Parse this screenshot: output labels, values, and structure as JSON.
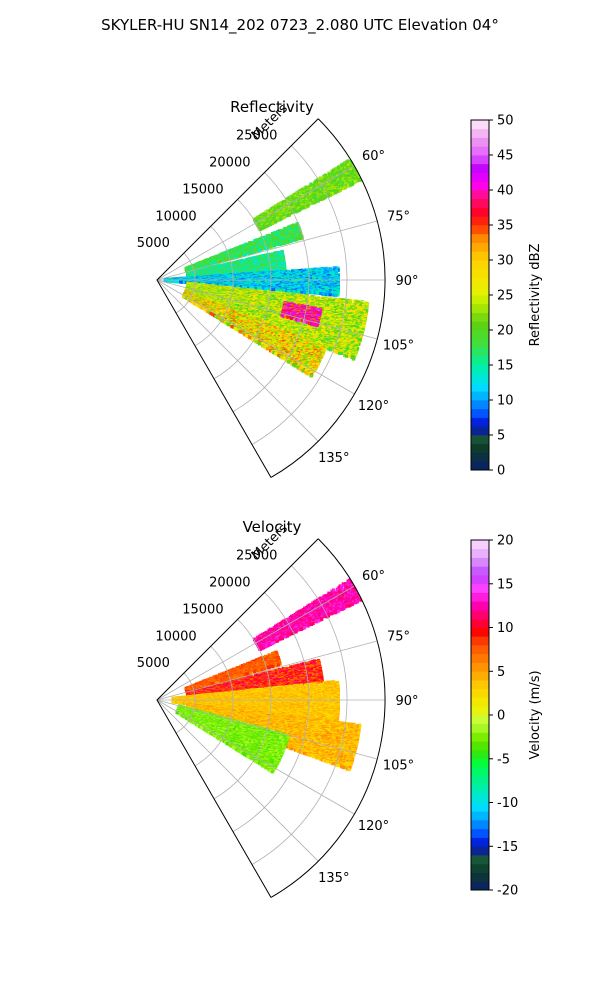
{
  "figure": {
    "title": "SKYLER-HU  SN14_202  0723_2.080 UTC Elevation 04°"
  },
  "chart_data": [
    {
      "type": "heatmap",
      "projection": "polar-sector",
      "title": "Reflectivity",
      "radial_label": "Meters",
      "theta_ticks": [
        "60°",
        "75°",
        "90°",
        "105°",
        "120°",
        "135°"
      ],
      "theta_values": [
        60,
        75,
        90,
        105,
        120,
        135
      ],
      "theta_range": [
        45,
        150
      ],
      "r_ticks": [
        "5000",
        "10000",
        "15000",
        "20000",
        "25000"
      ],
      "r_values": [
        5000,
        10000,
        15000,
        20000,
        25000
      ],
      "r_max": 30000,
      "colorbar": {
        "label": "Reflectivity dBZ",
        "min": 0,
        "max": 50,
        "ticks": [
          "0",
          "5",
          "10",
          "15",
          "20",
          "25",
          "30",
          "35",
          "40",
          "45",
          "50"
        ],
        "tick_values": [
          0,
          5,
          10,
          15,
          20,
          25,
          30,
          35,
          40,
          45,
          50
        ]
      },
      "echo_regions": [
        {
          "theta": [
            58,
            64
          ],
          "r": [
            15000,
            30000
          ],
          "value": [
            18,
            24
          ]
        },
        {
          "theta": [
            68,
            74
          ],
          "r": [
            4000,
            20000
          ],
          "value": [
            14,
            22
          ]
        },
        {
          "theta": [
            77,
            86
          ],
          "r": [
            4000,
            17000
          ],
          "value": [
            12,
            20
          ]
        },
        {
          "theta": [
            86,
            95
          ],
          "r": [
            1000,
            24000
          ],
          "value": [
            8,
            16
          ]
        },
        {
          "theta": [
            96,
            112
          ],
          "r": [
            4000,
            28000
          ],
          "value": [
            18,
            30
          ]
        },
        {
          "theta": [
            100,
            106
          ],
          "r": [
            17000,
            22000
          ],
          "value": [
            33,
            45
          ]
        },
        {
          "theta": [
            112,
            122
          ],
          "r": [
            4000,
            24000
          ],
          "value": [
            20,
            35
          ]
        }
      ]
    },
    {
      "type": "heatmap",
      "projection": "polar-sector",
      "title": "Velocity",
      "radial_label": "Meters",
      "theta_ticks": [
        "60°",
        "75°",
        "90°",
        "105°",
        "120°",
        "135°"
      ],
      "theta_values": [
        60,
        75,
        90,
        105,
        120,
        135
      ],
      "theta_range": [
        45,
        150
      ],
      "r_ticks": [
        "5000",
        "10000",
        "15000",
        "20000",
        "25000"
      ],
      "r_values": [
        5000,
        10000,
        15000,
        20000,
        25000
      ],
      "r_max": 30000,
      "colorbar": {
        "label": "Velocity (m/s)",
        "min": -20,
        "max": 20,
        "ticks": [
          "-20",
          "-15",
          "-10",
          "-5",
          "0",
          "5",
          "10",
          "15",
          "20"
        ],
        "tick_values": [
          -20,
          -15,
          -10,
          -5,
          0,
          5,
          10,
          15,
          20
        ]
      },
      "echo_regions": [
        {
          "theta": [
            58,
            64
          ],
          "r": [
            15000,
            30000
          ],
          "value": [
            11,
            14
          ]
        },
        {
          "theta": [
            68,
            74
          ],
          "r": [
            4000,
            17000
          ],
          "value": [
            6,
            9
          ]
        },
        {
          "theta": [
            76,
            84
          ],
          "r": [
            4000,
            22000
          ],
          "value": [
            6,
            12
          ]
        },
        {
          "theta": [
            84,
            97
          ],
          "r": [
            2000,
            24000
          ],
          "value": [
            2,
            5
          ]
        },
        {
          "theta": [
            97,
            110
          ],
          "r": [
            4000,
            27000
          ],
          "value": [
            2,
            6
          ]
        },
        {
          "theta": [
            105,
            122
          ],
          "r": [
            3000,
            18000
          ],
          "value": [
            -4,
            -1
          ]
        }
      ]
    }
  ]
}
